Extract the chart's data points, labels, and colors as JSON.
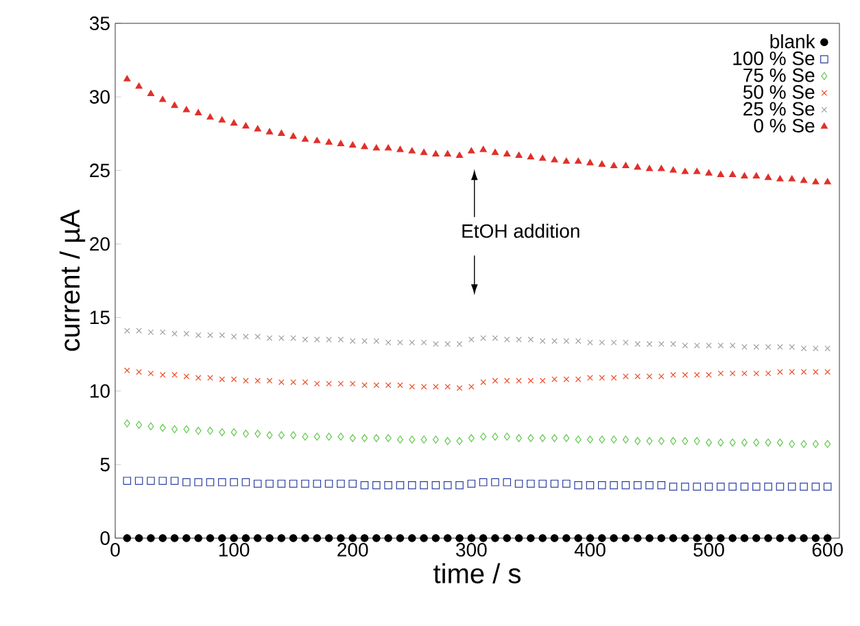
{
  "chart_data": {
    "type": "scatter",
    "xlabel": "time / s",
    "ylabel": "current / µA",
    "xlim": [
      0,
      610
    ],
    "ylim": [
      0,
      35
    ],
    "xticks": [
      0,
      100,
      200,
      300,
      400,
      500,
      600
    ],
    "yticks": [
      0,
      5,
      10,
      15,
      20,
      25,
      30,
      35
    ],
    "legend": "top right",
    "annotations": [
      "EtOH addition"
    ],
    "x": [
      10,
      20,
      30,
      40,
      50,
      60,
      70,
      80,
      90,
      100,
      110,
      120,
      130,
      140,
      150,
      160,
      170,
      180,
      190,
      200,
      210,
      220,
      230,
      240,
      250,
      260,
      270,
      280,
      290,
      300,
      310,
      320,
      330,
      340,
      350,
      360,
      370,
      380,
      390,
      400,
      410,
      420,
      430,
      440,
      450,
      460,
      470,
      480,
      490,
      500,
      510,
      520,
      530,
      540,
      550,
      560,
      570,
      580,
      590,
      600
    ],
    "series": [
      {
        "name": "blank",
        "color": "#000000",
        "marker": "circle",
        "values": [
          0,
          0,
          0,
          0,
          0,
          0,
          0,
          0,
          0,
          0,
          0,
          0,
          0,
          0,
          0,
          0,
          0,
          0,
          0,
          0,
          0,
          0,
          0,
          0,
          0,
          0,
          0,
          0,
          0,
          0,
          0,
          0,
          0,
          0,
          0,
          0,
          0,
          0,
          0,
          0,
          0,
          0,
          0,
          0,
          0,
          0,
          0,
          0,
          0,
          0,
          0,
          0,
          0,
          0,
          0,
          0,
          0,
          0,
          0,
          0
        ]
      },
      {
        "name": "100 % Se",
        "color": "#2b3fa0",
        "marker": "square",
        "values": [
          3.9,
          3.9,
          3.9,
          3.9,
          3.9,
          3.8,
          3.8,
          3.8,
          3.8,
          3.8,
          3.8,
          3.7,
          3.7,
          3.7,
          3.7,
          3.7,
          3.7,
          3.7,
          3.7,
          3.7,
          3.6,
          3.6,
          3.6,
          3.6,
          3.6,
          3.6,
          3.6,
          3.6,
          3.6,
          3.7,
          3.8,
          3.8,
          3.8,
          3.7,
          3.7,
          3.7,
          3.7,
          3.7,
          3.6,
          3.6,
          3.6,
          3.6,
          3.6,
          3.6,
          3.6,
          3.6,
          3.5,
          3.5,
          3.5,
          3.5,
          3.5,
          3.5,
          3.5,
          3.5,
          3.5,
          3.5,
          3.5,
          3.5,
          3.5,
          3.5
        ]
      },
      {
        "name": "75 % Se",
        "color": "#5ec94a",
        "marker": "diamond",
        "values": [
          7.8,
          7.7,
          7.6,
          7.5,
          7.4,
          7.4,
          7.3,
          7.3,
          7.2,
          7.2,
          7.1,
          7.1,
          7.0,
          7.0,
          7.0,
          6.9,
          6.9,
          6.9,
          6.9,
          6.8,
          6.8,
          6.8,
          6.8,
          6.7,
          6.7,
          6.7,
          6.7,
          6.6,
          6.6,
          6.8,
          6.9,
          6.9,
          6.9,
          6.8,
          6.8,
          6.8,
          6.8,
          6.8,
          6.7,
          6.7,
          6.7,
          6.7,
          6.7,
          6.6,
          6.6,
          6.6,
          6.6,
          6.6,
          6.6,
          6.5,
          6.5,
          6.5,
          6.5,
          6.5,
          6.5,
          6.5,
          6.4,
          6.4,
          6.4,
          6.4
        ]
      },
      {
        "name": "50 % Se",
        "color": "#f04a23",
        "marker": "cross",
        "values": [
          11.4,
          11.3,
          11.2,
          11.1,
          11.1,
          11.0,
          10.9,
          10.9,
          10.8,
          10.8,
          10.7,
          10.7,
          10.7,
          10.6,
          10.6,
          10.6,
          10.5,
          10.5,
          10.5,
          10.5,
          10.4,
          10.4,
          10.4,
          10.4,
          10.3,
          10.3,
          10.3,
          10.3,
          10.2,
          10.3,
          10.6,
          10.7,
          10.7,
          10.7,
          10.7,
          10.7,
          10.8,
          10.8,
          10.8,
          10.9,
          10.9,
          10.9,
          11.0,
          11.0,
          11.0,
          11.0,
          11.1,
          11.1,
          11.1,
          11.1,
          11.2,
          11.2,
          11.2,
          11.2,
          11.2,
          11.3,
          11.3,
          11.3,
          11.3,
          11.3
        ]
      },
      {
        "name": "25 % Se",
        "color": "#a0a0a0",
        "marker": "cross",
        "values": [
          14.1,
          14.1,
          14.0,
          14.0,
          13.9,
          13.9,
          13.8,
          13.8,
          13.8,
          13.7,
          13.7,
          13.7,
          13.6,
          13.6,
          13.6,
          13.5,
          13.5,
          13.5,
          13.5,
          13.4,
          13.4,
          13.4,
          13.3,
          13.3,
          13.3,
          13.3,
          13.2,
          13.2,
          13.2,
          13.5,
          13.6,
          13.6,
          13.5,
          13.5,
          13.5,
          13.4,
          13.4,
          13.4,
          13.4,
          13.3,
          13.3,
          13.3,
          13.3,
          13.2,
          13.2,
          13.2,
          13.2,
          13.1,
          13.1,
          13.1,
          13.1,
          13.1,
          13.0,
          13.0,
          13.0,
          13.0,
          13.0,
          12.9,
          12.9,
          12.9
        ]
      },
      {
        "name": "0 % Se",
        "color": "#e0302a",
        "marker": "triangle",
        "values": [
          31.2,
          30.7,
          30.2,
          29.8,
          29.4,
          29.1,
          28.9,
          28.6,
          28.4,
          28.2,
          28.0,
          27.8,
          27.6,
          27.5,
          27.3,
          27.1,
          27.0,
          26.9,
          26.8,
          26.7,
          26.6,
          26.5,
          26.5,
          26.4,
          26.3,
          26.2,
          26.1,
          26.1,
          26.0,
          26.3,
          26.4,
          26.2,
          26.1,
          26.0,
          25.9,
          25.8,
          25.7,
          25.6,
          25.6,
          25.5,
          25.4,
          25.3,
          25.3,
          25.2,
          25.1,
          25.1,
          25.0,
          24.9,
          24.9,
          24.8,
          24.7,
          24.7,
          24.6,
          24.6,
          24.5,
          24.4,
          24.4,
          24.3,
          24.2,
          24.2
        ]
      }
    ]
  }
}
